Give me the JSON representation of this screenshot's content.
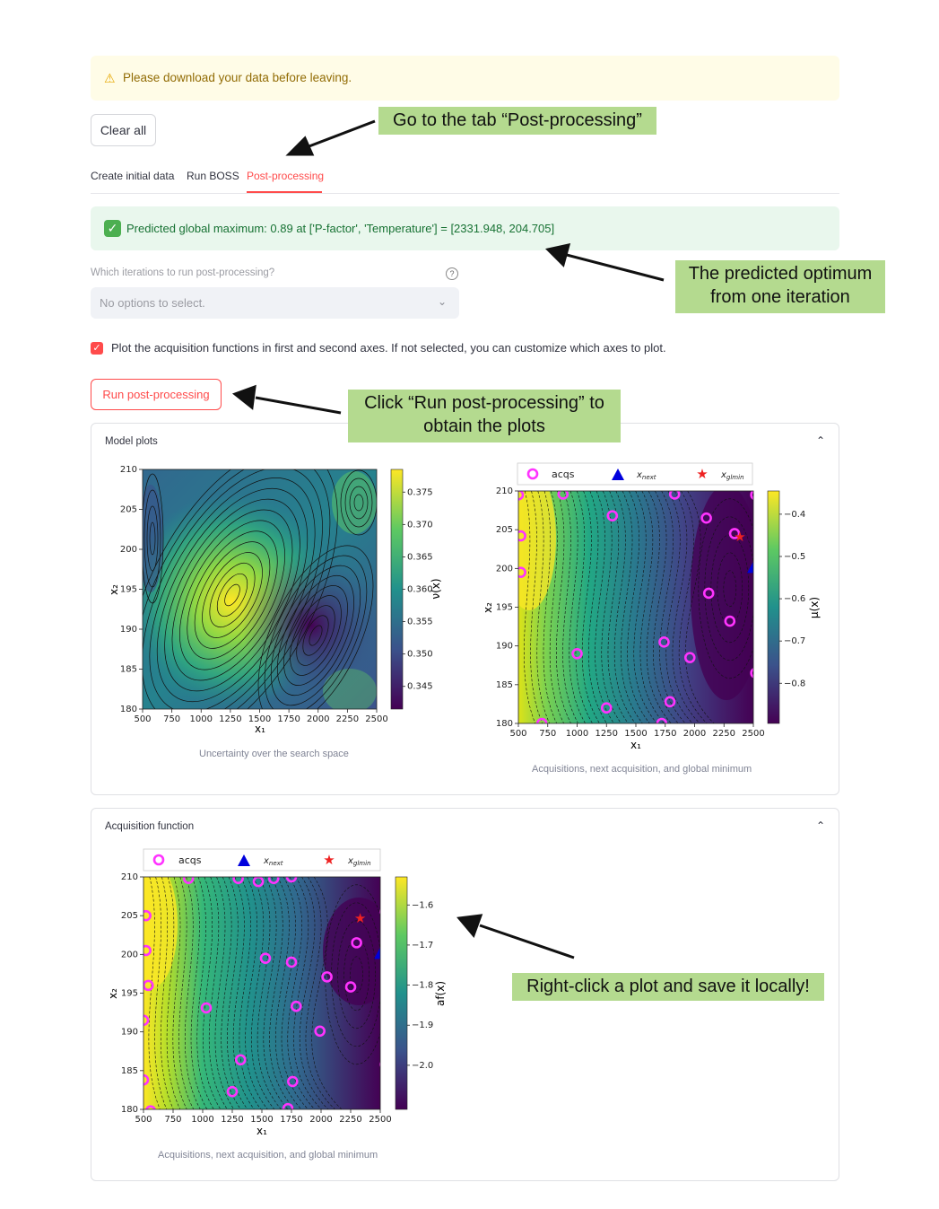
{
  "warning": {
    "icon": "warning-icon",
    "text": "Please download your data before leaving."
  },
  "clear_button": "Clear all",
  "tabs": [
    {
      "label": "Create initial data",
      "active": false
    },
    {
      "label": "Run BOSS",
      "active": false
    },
    {
      "label": "Post-processing",
      "active": true
    }
  ],
  "success": {
    "text": "Predicted global maximum: 0.89 at ['P-factor', 'Temperature'] = [2331.948, 204.705]"
  },
  "multiselect": {
    "label": "Which iterations to run post-processing?",
    "placeholder": "No options to select."
  },
  "checkbox": {
    "checked": true,
    "label": "Plot the acquisition functions in first and second axes. If not selected, you can customize which axes to plot."
  },
  "run_button": "Run post-processing",
  "expanders": [
    {
      "title": "Model plots"
    },
    {
      "title": "Acquisition function"
    }
  ],
  "captions": {
    "uncertainty": "Uncertainty over the search space",
    "acquisitions": "Acquisitions, next acquisition, and global minimum",
    "acquisitions2": "Acquisitions, next acquisition, and global minimum"
  },
  "notes": {
    "tab": "Go to the tab “Post-processing”",
    "optimum_1": "The predicted optimum",
    "optimum_2": "from one iteration",
    "run_1": "Click “Run post-processing” to",
    "run_2": "obtain the plots",
    "save": "Right-click a plot and save it locally!"
  },
  "chart_data": [
    {
      "type": "heatmap",
      "title": "",
      "xlabel": "x₁",
      "ylabel": "x₂",
      "colorbar_label": "ν(x)",
      "xlim": [
        500,
        2500
      ],
      "ylim": [
        180,
        210
      ],
      "x_ticks": [
        500,
        750,
        1000,
        1250,
        1500,
        1750,
        2000,
        2250,
        2500
      ],
      "y_ticks": [
        180,
        185,
        190,
        195,
        200,
        205,
        210
      ],
      "colorbar_ticks": [
        0.345,
        0.35,
        0.355,
        0.36,
        0.365,
        0.37,
        0.375
      ],
      "colormap": "viridis"
    },
    {
      "type": "heatmap",
      "xlabel": "x₁",
      "ylabel": "x₂",
      "colorbar_label": "μ(x)",
      "xlim": [
        500,
        2500
      ],
      "ylim": [
        180,
        210
      ],
      "x_ticks": [
        500,
        750,
        1000,
        1250,
        1500,
        1750,
        2000,
        2250,
        2500
      ],
      "y_ticks": [
        180,
        185,
        190,
        195,
        200,
        205,
        210
      ],
      "colorbar_ticks": [
        -0.8,
        -0.7,
        -0.6,
        -0.5,
        -0.4
      ],
      "legend": [
        "acqs",
        "x_next",
        "x_glmin"
      ],
      "legend_placement": "top",
      "acqs": [
        [
          500,
          209.5
        ],
        [
          880,
          209.6
        ],
        [
          1300,
          206.8
        ],
        [
          1830,
          209.6
        ],
        [
          2100,
          206.5
        ],
        [
          2120,
          196.8
        ],
        [
          2300,
          193.2
        ],
        [
          2340,
          204.5
        ],
        [
          2520,
          209.5
        ],
        [
          1740,
          190.5
        ],
        [
          1960,
          188.5
        ],
        [
          1790,
          182.8
        ],
        [
          1250,
          182.0
        ],
        [
          700,
          180.0
        ],
        [
          1720,
          180.0
        ],
        [
          2520,
          186.5
        ],
        [
          520,
          204.2
        ],
        [
          520,
          199.5
        ],
        [
          1000,
          189.0
        ]
      ],
      "x_next": [
        2500,
        200.0
      ],
      "x_glmin": [
        2385,
        204.1
      ]
    },
    {
      "type": "heatmap",
      "xlabel": "x₁",
      "ylabel": "x₂",
      "colorbar_label": "af(x)",
      "xlim": [
        500,
        2500
      ],
      "ylim": [
        180,
        210
      ],
      "x_ticks": [
        500,
        750,
        1000,
        1250,
        1500,
        1750,
        2000,
        2250,
        2500
      ],
      "y_ticks": [
        180,
        185,
        190,
        195,
        200,
        205,
        210
      ],
      "colorbar_ticks": [
        -2.0,
        -1.9,
        -1.8,
        -1.7,
        -1.6
      ],
      "legend": [
        "acqs",
        "x_next",
        "x_glmin"
      ],
      "legend_placement": "top",
      "acqs": [
        [
          880,
          209.8
        ],
        [
          1300,
          209.8
        ],
        [
          1600,
          209.8
        ],
        [
          1750,
          210.0
        ],
        [
          1470,
          209.4
        ],
        [
          2300,
          201.5
        ],
        [
          2250,
          195.8
        ],
        [
          2540,
          205.5
        ],
        [
          1530,
          199.5
        ],
        [
          1750,
          199.0
        ],
        [
          2050,
          197.1
        ],
        [
          1790,
          193.3
        ],
        [
          1990,
          190.1
        ],
        [
          1320,
          186.4
        ],
        [
          1760,
          183.6
        ],
        [
          1250,
          182.3
        ],
        [
          1720,
          180.1
        ],
        [
          520,
          200.5
        ],
        [
          520,
          205.0
        ],
        [
          540,
          196.0
        ],
        [
          500,
          191.5
        ],
        [
          1030,
          193.1
        ],
        [
          2540,
          185.8
        ],
        [
          500,
          183.8
        ],
        [
          560,
          179.8
        ],
        [
          2540,
          211.0
        ]
      ],
      "x_next": [
        2500,
        200.0
      ],
      "x_glmin": [
        2330,
        204.7
      ]
    }
  ]
}
